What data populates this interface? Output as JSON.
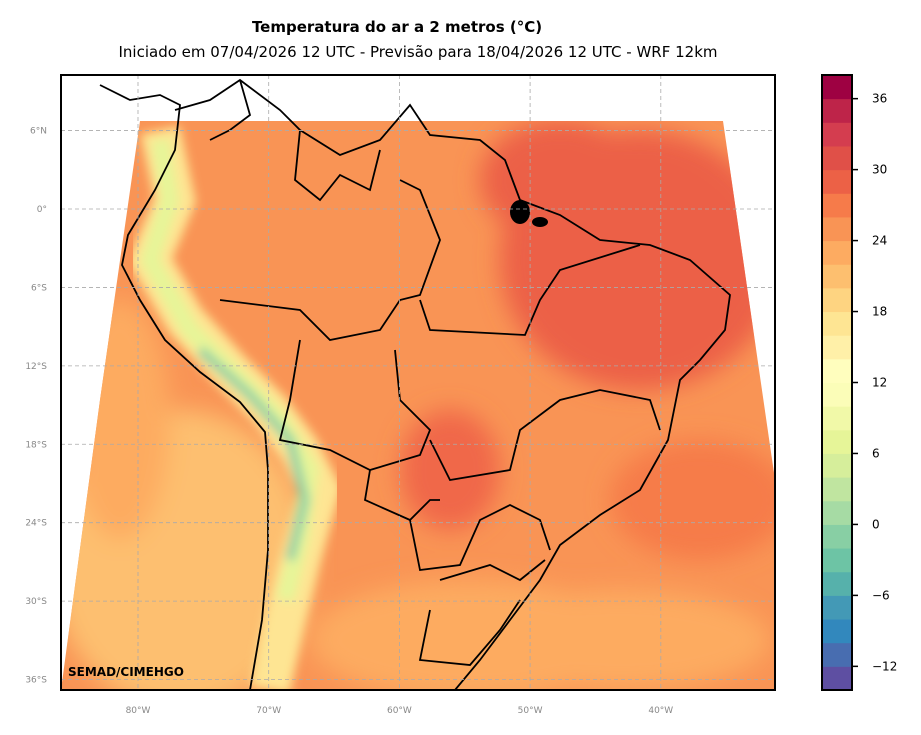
{
  "title": "Temperatura do ar a 2 metros (°C)",
  "subtitle": "Iniciado em 07/04/2026 12 UTC - Previsão para 18/04/2026 12 UTC - WRF 12km",
  "credit": "SEMAD/CIMEHGO",
  "lon_ticks": [
    {
      "lon": -80,
      "label": "80°W"
    },
    {
      "lon": -70,
      "label": "70°W"
    },
    {
      "lon": -60,
      "label": "60°W"
    },
    {
      "lon": -50,
      "label": "50°W"
    },
    {
      "lon": -40,
      "label": "40°W"
    }
  ],
  "lat_ticks": [
    {
      "lat": 6,
      "label": "6°N"
    },
    {
      "lat": 0,
      "label": "0°"
    },
    {
      "lat": -6,
      "label": "6°S"
    },
    {
      "lat": -12,
      "label": "12°S"
    },
    {
      "lat": -18,
      "label": "18°S"
    },
    {
      "lat": -24,
      "label": "24°S"
    },
    {
      "lat": -30,
      "label": "30°S"
    },
    {
      "lat": -36,
      "label": "36°S"
    }
  ],
  "colorbar": {
    "min": -14,
    "max": 38,
    "step": 2,
    "ticks": [
      {
        "value": 36,
        "label": "36"
      },
      {
        "value": 30,
        "label": "30"
      },
      {
        "value": 24,
        "label": "24"
      },
      {
        "value": 18,
        "label": "18"
      },
      {
        "value": 12,
        "label": "12"
      },
      {
        "value": 6,
        "label": "6"
      },
      {
        "value": 0,
        "label": "0"
      },
      {
        "value": -6,
        "label": "−6"
      },
      {
        "value": -12,
        "label": "−12"
      }
    ],
    "colors": [
      "#5e4fa2",
      "#486db0",
      "#3288bd",
      "#4399b6",
      "#56b1ab",
      "#6dc4a5",
      "#88cfa4",
      "#a6dba4",
      "#c0e5a0",
      "#d6ee9b",
      "#e6f598",
      "#f1f9a8",
      "#fbfdb8",
      "#fffebe",
      "#fff0a8",
      "#fee593",
      "#fed481",
      "#fdbf6f",
      "#fdab61",
      "#f99455",
      "#f67b4a",
      "#ec6146",
      "#e05048",
      "#d43d4f",
      "#be2449",
      "#9e0142"
    ]
  }
}
